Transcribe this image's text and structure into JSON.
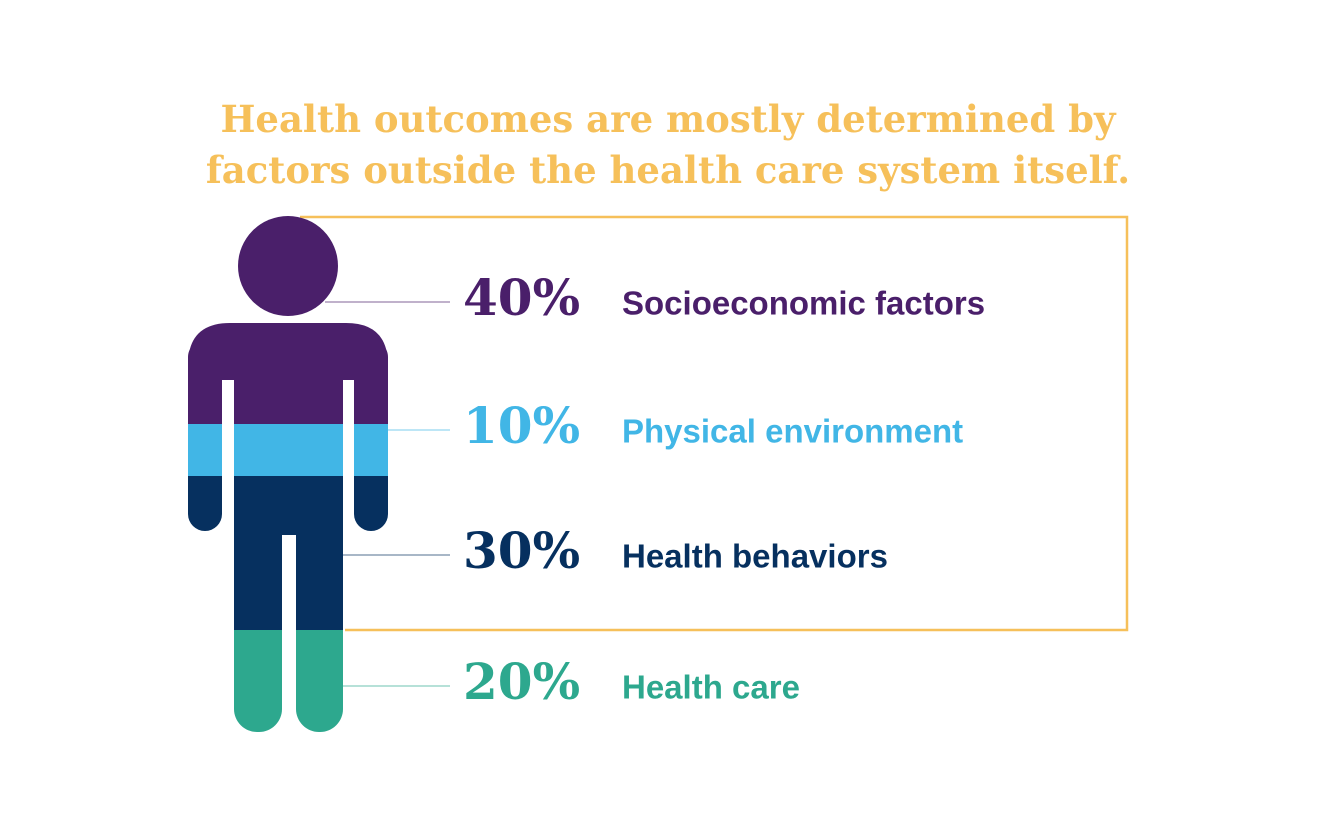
{
  "title": {
    "lines": [
      "Health outcomes are mostly determined by",
      "factors outside the health care system itself."
    ]
  },
  "items": [
    {
      "percent": "40%",
      "label": "Socioeconomic factors",
      "color": "#4a1f6a"
    },
    {
      "percent": "10%",
      "label": "Physical environment",
      "color": "#41b6e6"
    },
    {
      "percent": "30%",
      "label": "Health behaviors",
      "color": "#06305f"
    },
    {
      "percent": "20%",
      "label": "Health care",
      "color": "#2da88e"
    }
  ]
}
